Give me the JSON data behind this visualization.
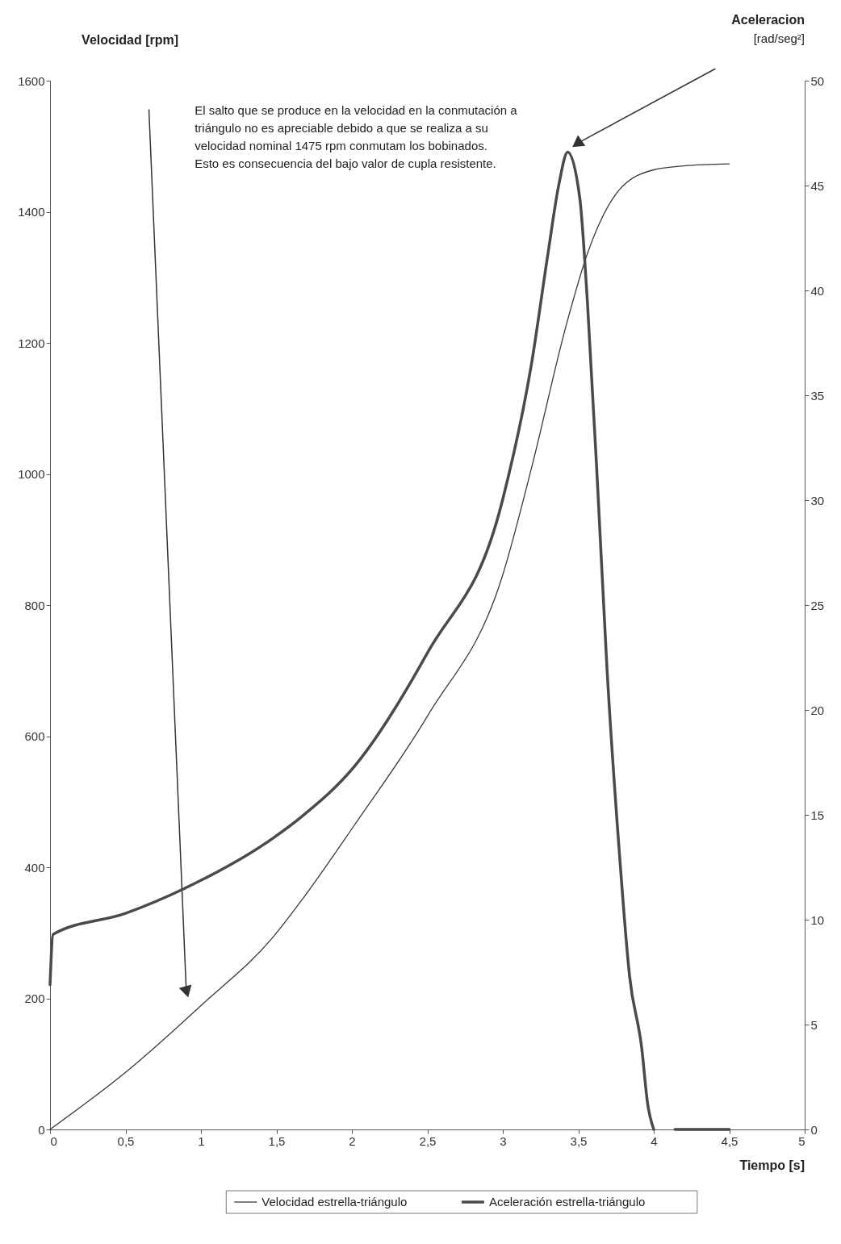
{
  "chart_data": {
    "type": "line",
    "xlabel": "Tiempo [s]",
    "ylabel": "Velocidad [rpm]",
    "y2label": "Aceleracion [rad/seg²]",
    "xlim": [
      0,
      5
    ],
    "xticks": [
      0,
      {
        "value": 0.5,
        "label": "0,5"
      },
      1,
      {
        "value": 1.5,
        "label": "1,5"
      },
      2,
      {
        "value": 2.5,
        "label": "2,5"
      },
      3,
      {
        "value": 3.5,
        "label": "3,5"
      },
      4,
      {
        "value": 4.5,
        "label": "4,5"
      },
      5
    ],
    "ylim": [
      0,
      1600
    ],
    "yticks": [
      0,
      200,
      400,
      600,
      800,
      1000,
      1200,
      1400,
      1600
    ],
    "y2lim": [
      0,
      50
    ],
    "y2ticks": [
      0,
      5,
      10,
      15,
      20,
      25,
      30,
      35,
      40,
      45,
      50
    ],
    "legend": "bottom",
    "grid": false,
    "annotations": [
      "El salto que se produce en la velocidad en la conmutación a\ntriángulo no es apreciable debido a que se realiza a su\nvelocidad nominal   1475 rpm  conmutam los bobinados.\nEsto es consecuencia del bajo valor de cupla resistente."
    ],
    "series": [
      {
        "name": "Velocidad estrella-triángulo",
        "color": "#3a3a3a",
        "axis": "y",
        "x": [
          0,
          0.5,
          1.01,
          1.48,
          1.665,
          2.016,
          2.507,
          2.998,
          3.19,
          3.42,
          3.56,
          3.77,
          4.0,
          4.2,
          4.5
        ],
        "values": [
          0,
          87,
          191,
          294,
          349,
          464,
          633,
          845,
          1009,
          1227,
          1336,
          1433,
          1464,
          1470,
          1473
        ]
      },
      {
        "name": "Aceleración estrella-triángulo",
        "color": "#4a4a4a",
        "axis": "y2",
        "x": [
          0,
          0.02,
          0.5,
          0.894,
          1.48,
          1.665,
          2.016,
          2.507,
          2.998,
          3.19,
          3.3,
          3.37,
          3.43,
          3.51,
          3.56,
          3.63,
          3.69,
          3.77,
          3.84,
          3.92,
          3.96,
          4.0,
          4.07,
          4.14,
          4.5
        ],
        "values": [
          6.9,
          9.3,
          10.3,
          11.5,
          13.9,
          14.9,
          17.3,
          22.8,
          30.0,
          36.5,
          41.8,
          45.0,
          46.6,
          44.4,
          39.5,
          30.4,
          22.0,
          13.4,
          7.3,
          3.9,
          1.2,
          0,
          null,
          0,
          0
        ]
      }
    ]
  }
}
